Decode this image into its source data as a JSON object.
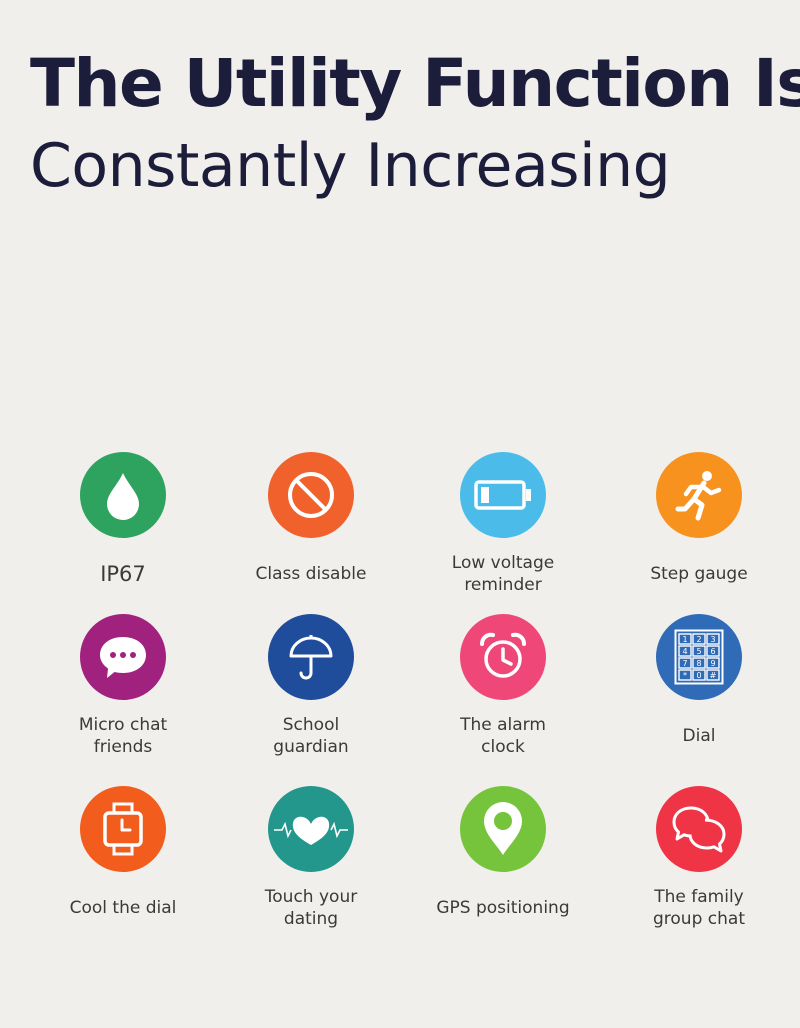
{
  "headline": {
    "line1": "The Utility Function Is",
    "line2": "Constantly Increasing"
  },
  "features": [
    {
      "label": "IP67",
      "icon": "water-drop-icon",
      "color": "#2ea25f"
    },
    {
      "label": "Class disable",
      "icon": "prohibited-icon",
      "color": "#f0612c"
    },
    {
      "label": "Low voltage\nreminder",
      "icon": "battery-icon",
      "color": "#4bbce9"
    },
    {
      "label": "Step gauge",
      "icon": "running-person-icon",
      "color": "#f7921e"
    },
    {
      "label": "Micro chat\nfriends",
      "icon": "chat-bubble-icon",
      "color": "#a0217e"
    },
    {
      "label": "School\nguardian",
      "icon": "umbrella-icon",
      "color": "#1f4d9c"
    },
    {
      "label": "The alarm\nclock",
      "icon": "alarm-clock-icon",
      "color": "#f04779"
    },
    {
      "label": "Dial",
      "icon": "keypad-icon",
      "color": "#2f6bb6"
    },
    {
      "label": "Cool the dial",
      "icon": "watch-icon",
      "color": "#f25c1c"
    },
    {
      "label": "Touch your\ndating",
      "icon": "heartbeat-hearts-icon",
      "color": "#23978b"
    },
    {
      "label": "GPS positioning",
      "icon": "location-pin-icon",
      "color": "#75c43b"
    },
    {
      "label": "The family\ngroup chat",
      "icon": "group-chat-icon",
      "color": "#ef3446"
    }
  ]
}
